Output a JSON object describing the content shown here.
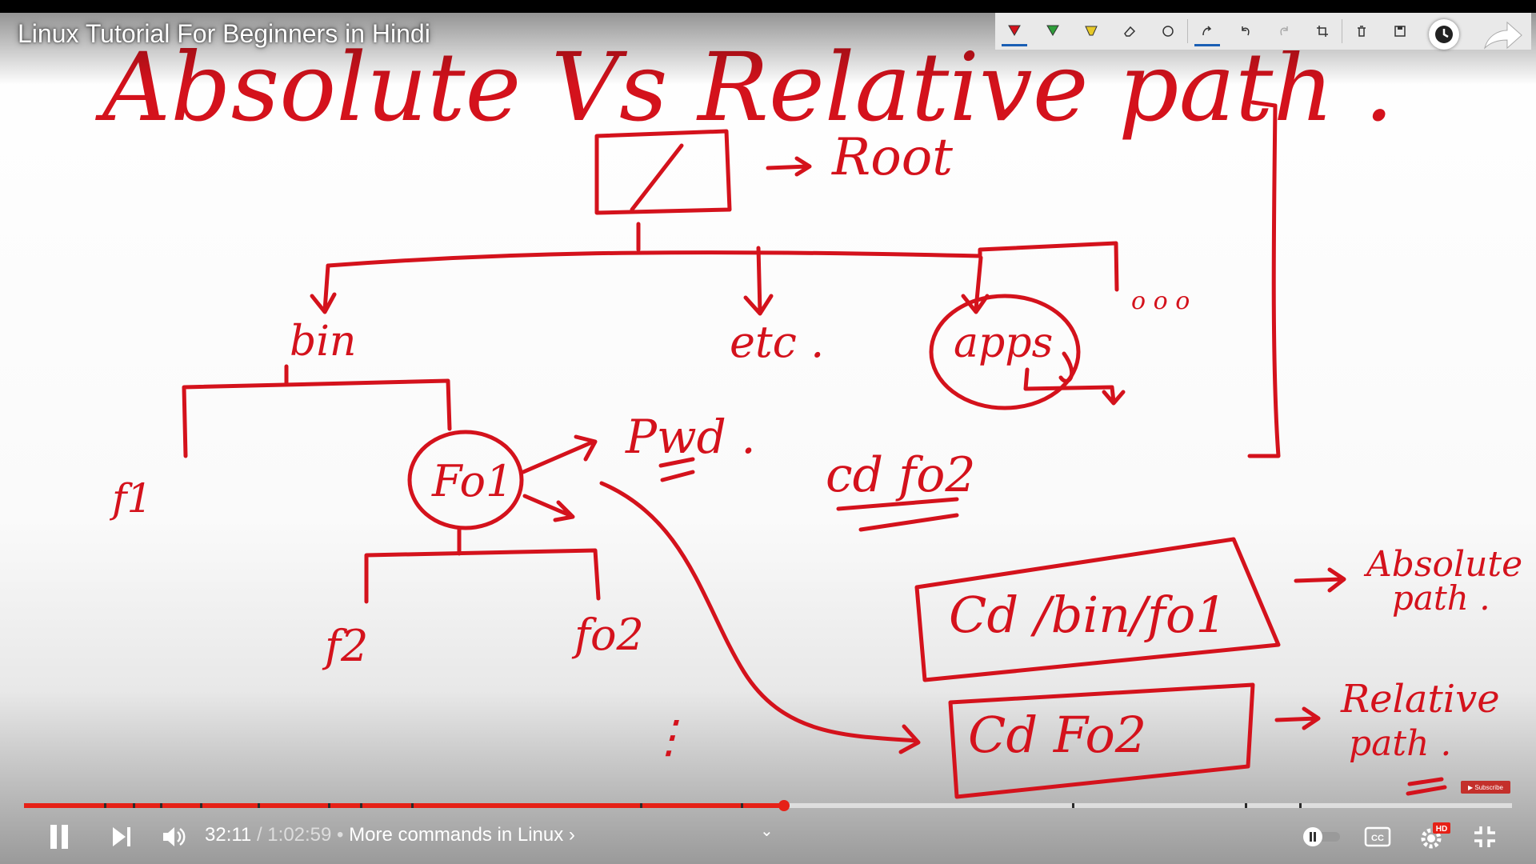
{
  "video": {
    "title": "Linux Tutorial For Beginners in Hindi"
  },
  "whiteboard": {
    "heading": "Absolute Vs Relative path .",
    "root_label": "Root",
    "root_symbol": "/",
    "nodes": {
      "bin": "bin",
      "etc": "etc .",
      "apps": "apps",
      "more": "o o o",
      "f1": "f1",
      "fo1": "Fo1",
      "f2": "f2",
      "fo2": "fo2",
      "dots": "⋮"
    },
    "pwd_note": "Pwd .",
    "cd_fo2_note": "cd fo2",
    "absolute_cmd": "Cd /bin/fo1",
    "absolute_label_line1": "Absolute",
    "absolute_label_line2": "path .",
    "relative_cmd": "Cd Fo2",
    "relative_label_line1": "Relative",
    "relative_label_line2": "path .",
    "ink_color": "#d4121c"
  },
  "ink_toolbar": {
    "tools": [
      "pen-red-icon",
      "pen-green-icon",
      "highlighter-icon",
      "eraser-icon",
      "lasso-icon",
      "touch-write-icon",
      "undo-icon",
      "redo-icon",
      "crop-icon",
      "trash-icon",
      "save-icon",
      "share-ink-icon"
    ]
  },
  "overlay": {
    "subscribe_badge": "▶ Subscribe"
  },
  "player": {
    "progress_fraction": 0.5106,
    "current_time": "32:11",
    "separator": " / ",
    "duration": "1:02:59",
    "chapter_prefix": " • ",
    "chapter": "More commands in Linux ›",
    "quality_badge": "HD",
    "cc_label": "CC",
    "accent": "#e62117"
  }
}
